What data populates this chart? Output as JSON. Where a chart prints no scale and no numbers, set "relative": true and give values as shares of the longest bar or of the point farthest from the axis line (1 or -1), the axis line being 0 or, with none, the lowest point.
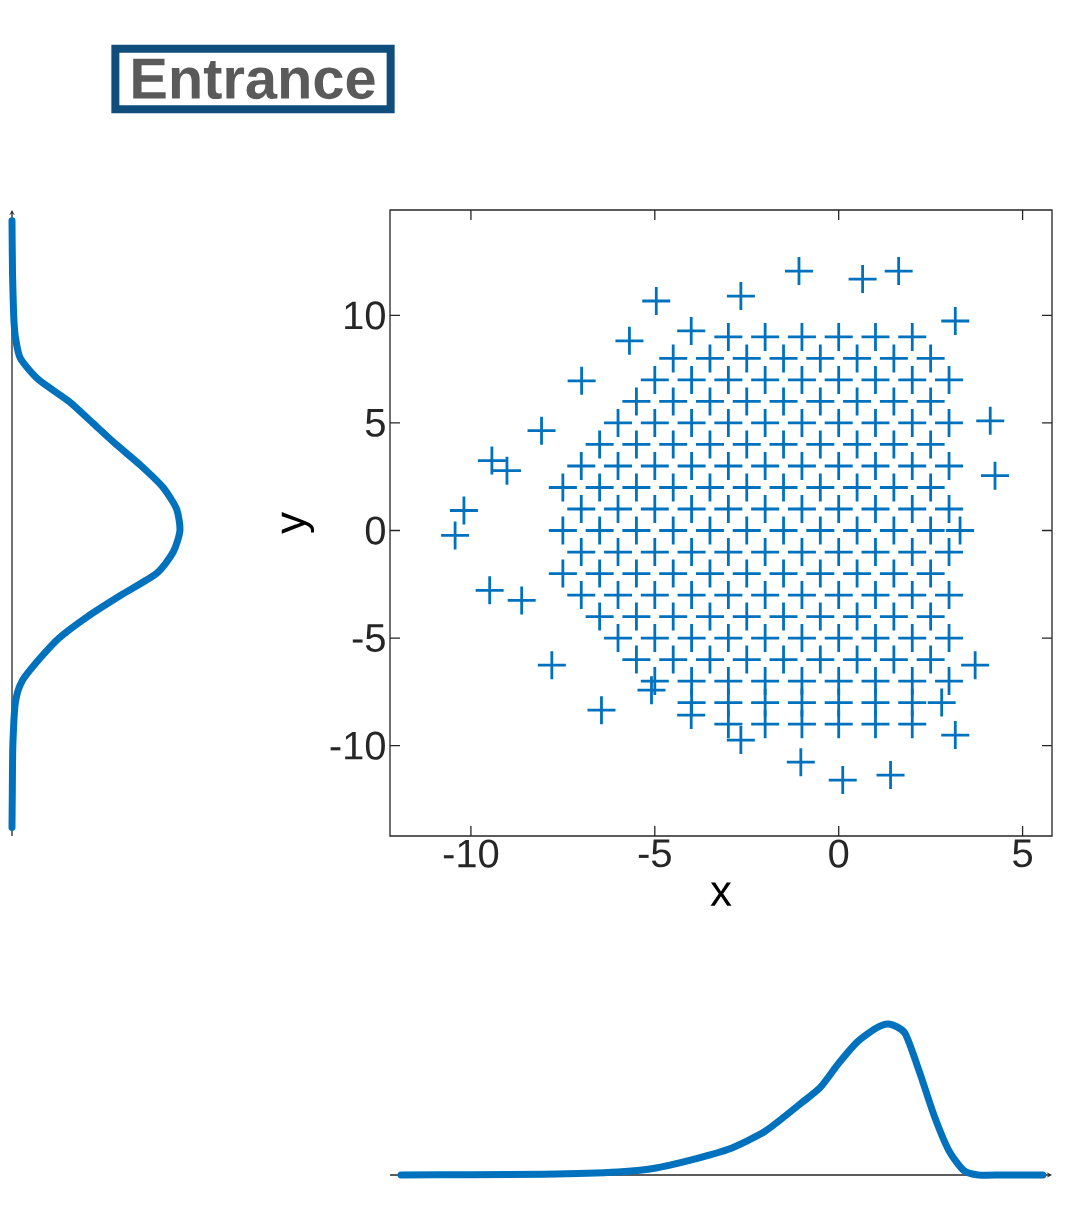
{
  "chart_data": [
    {
      "type": "line",
      "title": "Entrance",
      "orientation": "horizontal",
      "relative": true,
      "ylim": [
        -14.2,
        14.9
      ],
      "color": "#0072bd",
      "x": [
        14.4,
        12,
        10,
        9,
        8,
        7,
        6,
        5,
        4,
        3,
        2,
        1,
        0,
        -1,
        -2,
        -3,
        -4,
        -5,
        -6,
        -7,
        -8,
        -10,
        -12,
        -13.8
      ],
      "values": [
        0,
        0.003,
        0.01,
        0.02,
        0.05,
        0.16,
        0.34,
        0.48,
        0.62,
        0.77,
        0.9,
        0.98,
        1,
        0.96,
        0.86,
        0.65,
        0.45,
        0.28,
        0.16,
        0.06,
        0.02,
        0.005,
        0.002,
        0
      ]
    },
    {
      "type": "scatter",
      "xlabel": "x",
      "ylabel": "y",
      "xlim": [
        -12.2,
        5.8
      ],
      "ylim": [
        -14.2,
        14.9
      ],
      "xticks": [
        -10,
        -5,
        0,
        5
      ],
      "yticks": [
        -10,
        -5,
        0,
        5,
        10
      ],
      "marker": "cross",
      "series": [
        {
          "color": "#0072bd",
          "x": [
            -3,
            -2,
            -1,
            0,
            1,
            2
          ],
          "values": [
            9,
            9,
            9,
            9,
            9,
            9
          ]
        },
        {
          "color": "#0072bd",
          "x": [
            -4.5,
            -3.5,
            -2.5,
            -1.5,
            -0.5,
            0.5,
            1.5,
            2.5
          ],
          "values": [
            8,
            8,
            8,
            8,
            8,
            8,
            8,
            8
          ]
        },
        {
          "color": "#0072bd",
          "x": [
            -5,
            -4,
            -3,
            -2,
            -1,
            0,
            1,
            2,
            3
          ],
          "values": [
            7,
            7,
            7,
            7,
            7,
            7,
            7,
            7,
            7
          ]
        },
        {
          "color": "#0072bd",
          "x": [
            -5.5,
            -4.5,
            -3.5,
            -2.5,
            -1.5,
            -0.5,
            0.5,
            1.5,
            2.5
          ],
          "values": [
            6,
            6,
            6,
            6,
            6,
            6,
            6,
            6,
            6
          ]
        },
        {
          "color": "#0072bd",
          "x": [
            -6,
            -5,
            -4,
            -3,
            -2,
            -1,
            0,
            1,
            2,
            3
          ],
          "values": [
            5,
            5,
            5,
            5,
            5,
            5,
            5,
            5,
            5,
            5
          ]
        },
        {
          "color": "#0072bd",
          "x": [
            -6.5,
            -5.5,
            -4.5,
            -3.5,
            -2.5,
            -1.5,
            -0.5,
            0.5,
            1.5,
            2.5
          ],
          "values": [
            4,
            4,
            4,
            4,
            4,
            4,
            4,
            4,
            4,
            4
          ]
        },
        {
          "color": "#0072bd",
          "x": [
            -7,
            -6,
            -5,
            -4,
            -3,
            -2,
            -1,
            0,
            1,
            2,
            3
          ],
          "values": [
            3,
            3,
            3,
            3,
            3,
            3,
            3,
            3,
            3,
            3,
            3
          ]
        },
        {
          "color": "#0072bd",
          "x": [
            -7.5,
            -6.5,
            -5.5,
            -4.5,
            -3.5,
            -2.5,
            -1.5,
            -0.5,
            0.5,
            1.5,
            2.5
          ],
          "values": [
            2,
            2,
            2,
            2,
            2,
            2,
            2,
            2,
            2,
            2,
            2
          ]
        },
        {
          "color": "#0072bd",
          "x": [
            -7,
            -6,
            -5,
            -4,
            -3,
            -2,
            -1,
            0,
            1,
            2,
            3
          ],
          "values": [
            1,
            1,
            1,
            1,
            1,
            1,
            1,
            1,
            1,
            1,
            1
          ]
        },
        {
          "color": "#0072bd",
          "x": [
            -7.5,
            -6.5,
            -5.5,
            -4.5,
            -3.5,
            -2.5,
            -1.5,
            -0.5,
            0.5,
            1.5,
            2.5,
            3.3
          ],
          "values": [
            0,
            0,
            0,
            0,
            0,
            0,
            0,
            0,
            0,
            0,
            0,
            0
          ]
        },
        {
          "color": "#0072bd",
          "x": [
            -7,
            -6,
            -5,
            -4,
            -3,
            -2,
            -1,
            0,
            1,
            2,
            3
          ],
          "values": [
            -1,
            -1,
            -1,
            -1,
            -1,
            -1,
            -1,
            -1,
            -1,
            -1,
            -1
          ]
        },
        {
          "color": "#0072bd",
          "x": [
            -7.5,
            -6.5,
            -5.5,
            -4.5,
            -3.5,
            -2.5,
            -1.5,
            -0.5,
            0.5,
            1.5,
            2.5
          ],
          "values": [
            -2,
            -2,
            -2,
            -2,
            -2,
            -2,
            -2,
            -2,
            -2,
            -2,
            -2
          ]
        },
        {
          "color": "#0072bd",
          "x": [
            -7,
            -6,
            -5,
            -4,
            -3,
            -2,
            -1,
            0,
            1,
            2,
            3
          ],
          "values": [
            -3,
            -3,
            -3,
            -3,
            -3,
            -3,
            -3,
            -3,
            -3,
            -3,
            -3
          ]
        },
        {
          "color": "#0072bd",
          "x": [
            -6.5,
            -5.5,
            -4.5,
            -3.5,
            -2.5,
            -1.5,
            -0.5,
            0.5,
            1.5,
            2.5
          ],
          "values": [
            -4,
            -4,
            -4,
            -4,
            -4,
            -4,
            -4,
            -4,
            -4,
            -4
          ]
        },
        {
          "color": "#0072bd",
          "x": [
            -6,
            -5,
            -4,
            -3,
            -2,
            -1,
            0,
            1,
            2,
            3
          ],
          "values": [
            -5,
            -5,
            -5,
            -5,
            -5,
            -5,
            -5,
            -5,
            -5,
            -5
          ]
        },
        {
          "color": "#0072bd",
          "x": [
            -5.5,
            -4.5,
            -3.5,
            -2.5,
            -1.5,
            -0.5,
            0.5,
            1.5,
            2.5
          ],
          "values": [
            -6,
            -6,
            -6,
            -6,
            -6,
            -6,
            -6,
            -6,
            -6
          ]
        },
        {
          "color": "#0072bd",
          "x": [
            -5,
            -4,
            -3,
            -2,
            -1,
            0,
            1,
            2,
            3
          ],
          "values": [
            -7,
            -7,
            -7,
            -7,
            -7,
            -7,
            -7,
            -7,
            -7
          ]
        },
        {
          "color": "#0072bd",
          "x": [
            -4,
            -3,
            -2,
            -1,
            0,
            1,
            2,
            2.8
          ],
          "values": [
            -8,
            -8,
            -8,
            -8,
            -8,
            -8,
            -8,
            -8
          ]
        },
        {
          "color": "#0072bd",
          "x": [
            -3,
            -2,
            -1,
            0,
            1,
            2
          ],
          "values": [
            -9,
            -9,
            -9,
            -9,
            -9,
            -9
          ]
        },
        {
          "color": "#0072bd",
          "x": [
            -10.43,
            -10.19,
            -9.49,
            -9.43,
            -9.02,
            -8.62,
            -8.08,
            -7.8,
            -6.45,
            -5.69,
            -4.96,
            -6.99,
            -4.01,
            -2.66,
            -1.08,
            0.65,
            1.63,
            3.17,
            4.12,
            4.25,
            3.71,
            3.17,
            1.41,
            0.11,
            -1.03,
            -2.66,
            -4.01,
            -5.09
          ],
          "values": [
            -0.23,
            0.93,
            -2.78,
            3.25,
            2.78,
            -3.25,
            4.64,
            -6.26,
            -8.35,
            8.82,
            10.67,
            6.96,
            9.28,
            10.9,
            12.06,
            11.69,
            12.06,
            9.74,
            5.1,
            2.55,
            -6.26,
            -9.51,
            -11.37,
            -11.6,
            -10.77,
            -9.74,
            -8.58,
            -7.42
          ]
        }
      ]
    },
    {
      "type": "line",
      "relative": true,
      "xlim": [
        -12.2,
        5.8
      ],
      "color": "#0072bd",
      "x": [
        -11.9,
        -10,
        -8,
        -6,
        -5,
        -4,
        -3,
        -2,
        -1,
        -0.5,
        0,
        0.5,
        1,
        1.36,
        1.8,
        2.2,
        2.6,
        3,
        3.4,
        3.8,
        4.5,
        5.55
      ],
      "values": [
        0,
        0.002,
        0.005,
        0.02,
        0.045,
        0.1,
        0.17,
        0.29,
        0.48,
        0.58,
        0.74,
        0.88,
        0.97,
        1,
        0.94,
        0.68,
        0.39,
        0.16,
        0.03,
        0,
        0,
        0
      ]
    }
  ]
}
